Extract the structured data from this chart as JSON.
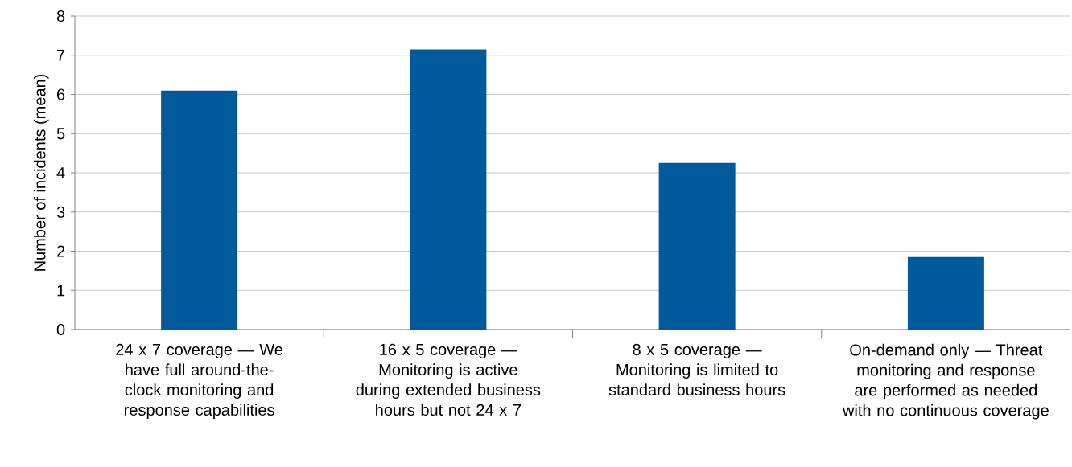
{
  "chart_data": {
    "type": "bar",
    "ylabel": "Number of incidents (mean)",
    "categories": [
      "24 x 7 coverage — We have full around-the-clock monitoring and response capabilities",
      "16 x 5 coverage — Monitoring is active during extended business hours but not 24 x 7",
      "8 x 5 coverage — Monitoring is limited to standard business hours",
      "On-demand only — Threat monitoring and response are performed as needed with no continuous coverage"
    ],
    "values": [
      6.1,
      7.15,
      4.25,
      1.85
    ],
    "color": "#005a9c",
    "ylim": [
      0,
      8
    ],
    "yticks": [
      0,
      1,
      2,
      3,
      4,
      5,
      6,
      7,
      8
    ],
    "grid": "y"
  }
}
